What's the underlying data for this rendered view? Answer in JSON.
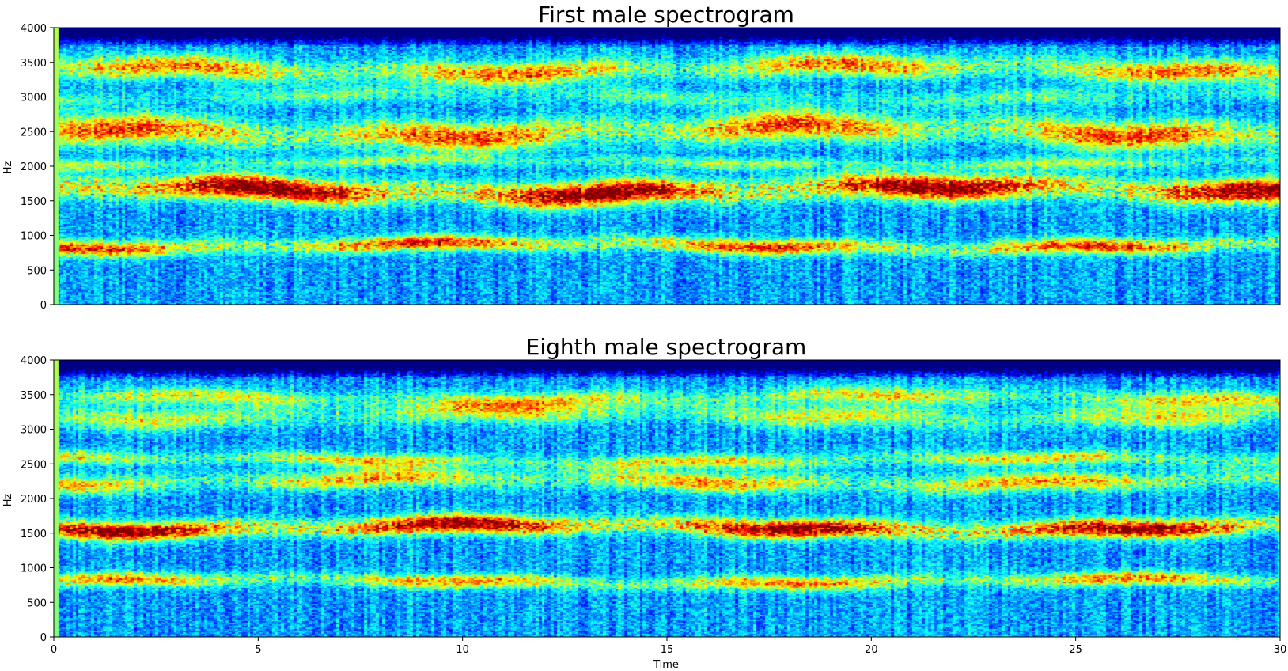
{
  "chart_data": [
    {
      "type": "heatmap",
      "title": "First male spectrogram",
      "ylabel": "Hz",
      "xlabel": "",
      "xlim": [
        0,
        30
      ],
      "ylim": [
        0,
        4000
      ],
      "xticks": [],
      "yticks": [
        0,
        500,
        1000,
        1500,
        2000,
        2500,
        3000,
        3500,
        4000
      ],
      "colormap": "jet",
      "bands_hz": [
        {
          "center": 850,
          "width": 110,
          "strength": 0.52
        },
        {
          "center": 1650,
          "width": 170,
          "strength": 0.72
        },
        {
          "center": 2050,
          "width": 80,
          "strength": 0.25
        },
        {
          "center": 2500,
          "width": 200,
          "strength": 0.5
        },
        {
          "center": 3000,
          "width": 120,
          "strength": 0.18
        },
        {
          "center": 3400,
          "width": 160,
          "strength": 0.45
        }
      ]
    },
    {
      "type": "heatmap",
      "title": "Eighth male spectrogram",
      "ylabel": "Hz",
      "xlabel": "Time",
      "xlim": [
        0,
        30
      ],
      "ylim": [
        0,
        4000
      ],
      "xticks": [
        0,
        5,
        10,
        15,
        20,
        25,
        30
      ],
      "yticks": [
        0,
        500,
        1000,
        1500,
        2000,
        2500,
        3000,
        3500,
        4000
      ],
      "colormap": "jet",
      "bands_hz": [
        {
          "center": 800,
          "width": 100,
          "strength": 0.42
        },
        {
          "center": 1580,
          "width": 130,
          "strength": 0.68
        },
        {
          "center": 2250,
          "width": 130,
          "strength": 0.4
        },
        {
          "center": 2550,
          "width": 100,
          "strength": 0.35
        },
        {
          "center": 3200,
          "width": 150,
          "strength": 0.3
        },
        {
          "center": 3450,
          "width": 120,
          "strength": 0.32
        }
      ]
    }
  ]
}
